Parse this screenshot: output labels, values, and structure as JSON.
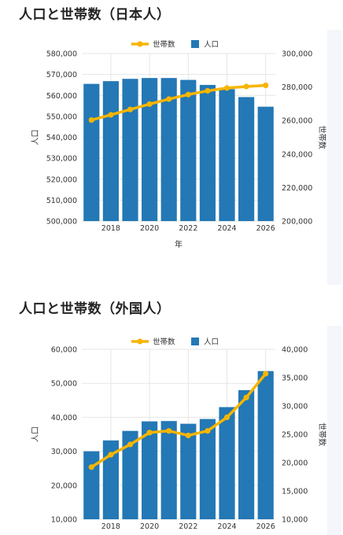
{
  "charts": [
    {
      "title": "人口と世帯数（日本人）"
    },
    {
      "title": "人口と世帯数（外国人）"
    }
  ],
  "colors": {
    "bar": "#2378b5",
    "line": "#f7b500",
    "grid": "#e6e6e6",
    "text": "#333333"
  },
  "chart_data": [
    {
      "type": "bar",
      "categories": [
        2017,
        2018,
        2019,
        2020,
        2021,
        2022,
        2023,
        2024,
        2025,
        2026
      ],
      "x_ticks": [
        "2018",
        "2020",
        "2022",
        "2024",
        "2026"
      ],
      "xlabel": "年",
      "ylabel": "人口",
      "y2label": "世帯数",
      "ylim": [
        500000,
        580000
      ],
      "y_ticks": [
        "500,000",
        "510,000",
        "520,000",
        "530,000",
        "540,000",
        "550,000",
        "560,000",
        "570,000",
        "580,000"
      ],
      "y2lim": [
        200000,
        300000
      ],
      "y2_ticks": [
        "200,000",
        "220,000",
        "240,000",
        "260,000",
        "280,000",
        "300,000"
      ],
      "legend": [
        "世帯数",
        "人口"
      ],
      "legend_position": "top-center",
      "series": [
        {
          "name": "人口",
          "type": "bar",
          "axis": "left",
          "values": [
            565500,
            566800,
            567900,
            568300,
            568300,
            567400,
            565000,
            563000,
            559200,
            554600
          ]
        },
        {
          "name": "世帯数",
          "type": "line",
          "axis": "right",
          "values": [
            260300,
            263400,
            266600,
            269800,
            272800,
            275500,
            277700,
            279400,
            280300,
            281000
          ]
        }
      ]
    },
    {
      "type": "bar",
      "categories": [
        2017,
        2018,
        2019,
        2020,
        2021,
        2022,
        2023,
        2024,
        2025,
        2026
      ],
      "x_ticks": [
        "2018",
        "2020",
        "2022",
        "2024",
        "2026"
      ],
      "xlabel": "",
      "ylabel": "人口",
      "y2label": "世帯数",
      "ylim": [
        10000,
        60000
      ],
      "y_ticks": [
        "10,000",
        "20,000",
        "30,000",
        "40,000",
        "50,000",
        "60,000"
      ],
      "y2lim": [
        10000,
        40000
      ],
      "y2_ticks": [
        "10,000",
        "15,000",
        "20,000",
        "25,000",
        "30,000",
        "35,000",
        "40,000"
      ],
      "legend": [
        "世帯数",
        "人口"
      ],
      "legend_position": "top-center",
      "series": [
        {
          "name": "人口",
          "type": "bar",
          "axis": "left",
          "values": [
            30000,
            33200,
            36000,
            38800,
            38900,
            38100,
            39500,
            43000,
            48000,
            53600
          ]
        },
        {
          "name": "世帯数",
          "type": "line",
          "axis": "right",
          "values": [
            19200,
            21400,
            23200,
            25300,
            25600,
            24800,
            25600,
            28000,
            31500,
            35700
          ]
        }
      ]
    }
  ]
}
